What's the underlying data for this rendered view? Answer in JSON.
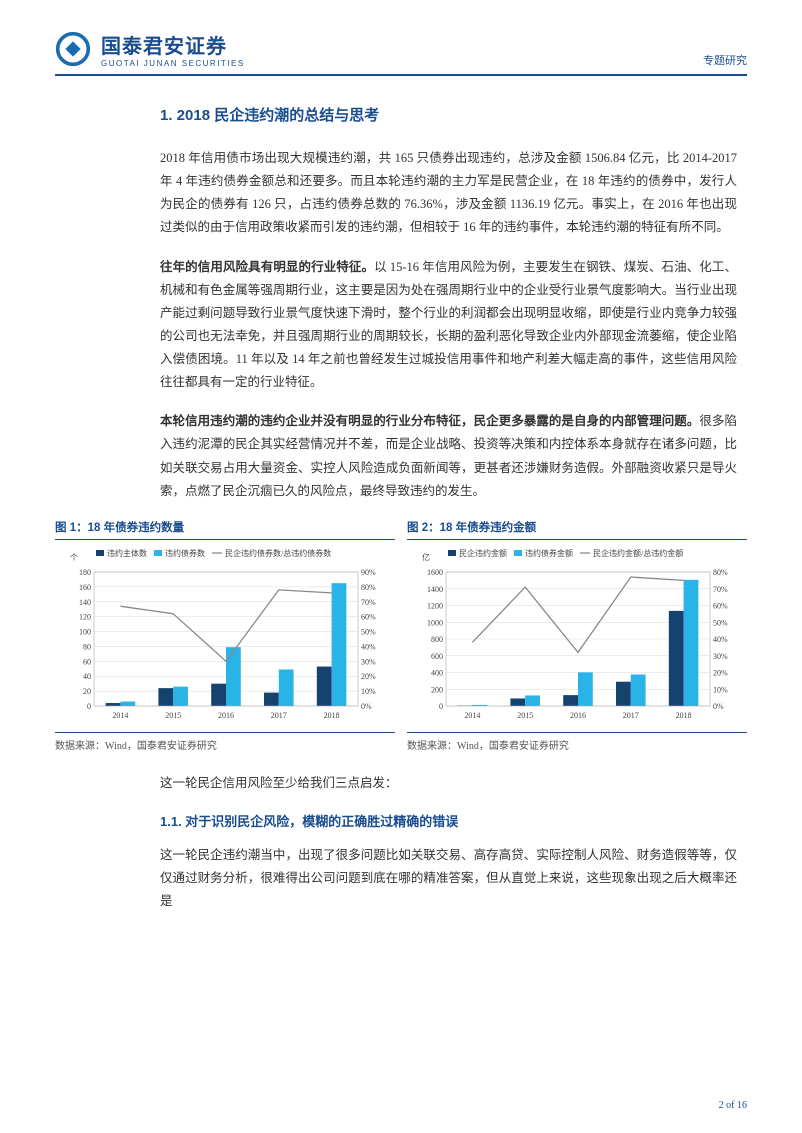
{
  "header": {
    "company_cn": "国泰君安证券",
    "company_en": "GUOTAI JUNAN SECURITIES",
    "doc_type": "专题研究",
    "logo_color": "#1a6bb0"
  },
  "section": {
    "h1": "1. 2018 民企违约潮的总结与思考",
    "p1": "2018 年信用债市场出现大规模违约潮，共 165 只债券出现违约，总涉及金额 1506.84 亿元，比 2014-2017 年 4 年违约债券金额总和还要多。而且本轮违约潮的主力军是民营企业，在 18 年违约的债券中，发行人为民企的债券有 126 只，占违约债券总数的 76.36%，涉及金额 1136.19 亿元。事实上，在 2016 年也出现过类似的由于信用政策收紧而引发的违约潮，但相较于 16 年的违约事件，本轮违约潮的特征有所不同。",
    "p2_bold": "往年的信用风险具有明显的行业特征。",
    "p2_rest": "以 15-16 年信用风险为例，主要发生在钢铁、煤炭、石油、化工、机械和有色金属等强周期行业，这主要是因为处在强周期行业中的企业受行业景气度影响大。当行业出现产能过剩问题导致行业景气度快速下滑时，整个行业的利润都会出现明显收缩，即使是行业内竞争力较强的公司也无法幸免，并且强周期行业的周期较长，长期的盈利恶化导致企业内外部现金流萎缩，使企业陷入偿债困境。11 年以及 14 年之前也曾经发生过城投信用事件和地产利差大幅走高的事件，这些信用风险往往都具有一定的行业特征。",
    "p3_bold": "本轮信用违约潮的违约企业并没有明显的行业分布特征，民企更多暴露的是自身的内部管理问题。",
    "p3_rest": "很多陷入违约泥潭的民企其实经营情况并不差，而是企业战略、投资等决策和内控体系本身就存在诸多问题，比如关联交易占用大量资金、实控人风险造成负面新闻等，更甚者还涉嫌财务造假。外部融资收紧只是导火索，点燃了民企沉痼已久的风险点，最终导致违约的发生。",
    "p4": "这一轮民企信用风险至少给我们三点启发：",
    "h2": "1.1. 对于识别民企风险，模糊的正确胜过精确的错误",
    "p5": "这一轮民企违约潮当中，出现了很多问题比如关联交易、高存高贷、实际控制人风险、财务造假等等，仅仅通过财务分析，很难得出公司问题到底在哪的精准答案，但从直觉上来说，这些现象出现之后大概率还是"
  },
  "chart1": {
    "title": "图 1：18 年债券违约数量",
    "type": "bar_line_dualaxis",
    "y1_label": "个",
    "y1_max": 180,
    "y1_step": 20,
    "y2_max": 90,
    "y2_step": 10,
    "categories": [
      "2014",
      "2015",
      "2016",
      "2017",
      "2018"
    ],
    "series": [
      {
        "name": "违约主体数",
        "color": "#16426f",
        "values": [
          4,
          24,
          30,
          18,
          53
        ]
      },
      {
        "name": "违约债券数",
        "color": "#2ab3e6",
        "values": [
          6,
          26,
          79,
          49,
          165
        ]
      }
    ],
    "line": {
      "name": "民企违约债券数/总违约债券数",
      "color": "#888888",
      "values": [
        67,
        62,
        30,
        78,
        76
      ]
    },
    "source": "数据来源：Wind，国泰君安证券研究",
    "background_color": "#ffffff",
    "grid_color": "#d9d9d9",
    "bar_width": 0.28,
    "font_size": 8
  },
  "chart2": {
    "title": "图 2：18 年债券违约金额",
    "type": "bar_line_dualaxis",
    "y1_label": "亿",
    "y1_max": 1600,
    "y1_step": 200,
    "y2_max": 80,
    "y2_step": 10,
    "categories": [
      "2014",
      "2015",
      "2016",
      "2017",
      "2018"
    ],
    "series": [
      {
        "name": "民企违约金额",
        "color": "#16426f",
        "values": [
          5,
          90,
          130,
          290,
          1136
        ]
      },
      {
        "name": "违约债券金额",
        "color": "#2ab3e6",
        "values": [
          13,
          126,
          402,
          376,
          1507
        ]
      }
    ],
    "line": {
      "name": "民企违约金额/总违约金额",
      "color": "#888888",
      "values": [
        38,
        71,
        32,
        77,
        75
      ]
    },
    "source": "数据来源：Wind，国泰君安证券研究",
    "background_color": "#ffffff",
    "grid_color": "#d9d9d9",
    "bar_width": 0.28,
    "font_size": 8
  },
  "footer": {
    "page": "2 of 16"
  }
}
